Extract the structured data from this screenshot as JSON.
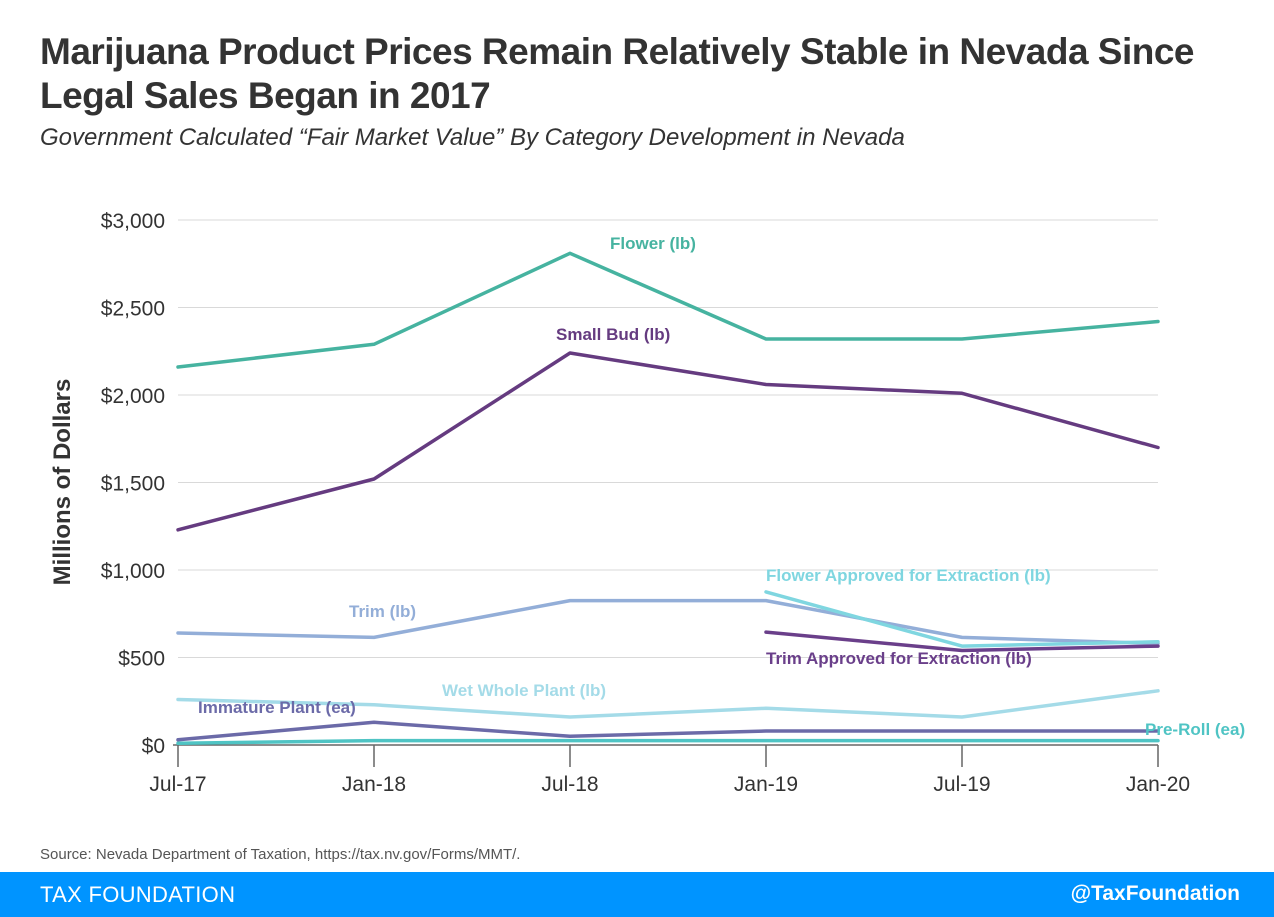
{
  "header": {
    "title": "Marijuana Product Prices Remain Relatively Stable in Nevada Since Legal Sales Began in 2017",
    "subtitle": "Government Calculated “Fair Market Value” By Category Development in Nevada"
  },
  "source": "Source: Nevada Department of Taxation, https://tax.nv.gov/Forms/MMT/.",
  "footer": {
    "brand": "TAX FOUNDATION",
    "handle": "@TaxFoundation",
    "color": "#0094ff"
  },
  "chart_data": {
    "type": "line",
    "title": "Marijuana Product Prices Remain Relatively Stable in Nevada Since Legal Sales Began in 2017",
    "subtitle": "Government Calculated “Fair Market Value” By Category Development in Nevada",
    "xlabel": "",
    "ylabel": "Millions of Dollars",
    "categories": [
      "Jul-17",
      "Jan-18",
      "Jul-18",
      "Jan-19",
      "Jul-19",
      "Jan-20"
    ],
    "ylim": [
      0,
      3000
    ],
    "yticks": [
      0,
      500,
      1000,
      1500,
      2000,
      2500,
      3000
    ],
    "ytick_labels": [
      "$0",
      "$500",
      "$1,000",
      "$1,500",
      "$2,000",
      "$2,500",
      "$3,000"
    ],
    "grid": true,
    "legend": "inline labels",
    "series": [
      {
        "name": "Flower (lb)",
        "color": "#46b3a0",
        "values": [
          2160,
          2290,
          2810,
          2320,
          2320,
          2420
        ]
      },
      {
        "name": "Small Bud (lb)",
        "color": "#653b80",
        "values": [
          1230,
          1520,
          2240,
          2060,
          2010,
          1700
        ]
      },
      {
        "name": "Trim (lb)",
        "color": "#93aed8",
        "values": [
          640,
          615,
          825,
          825,
          615,
          580
        ]
      },
      {
        "name": "Flower Approved for Extraction (lb)",
        "color": "#7fd6e0",
        "values": [
          null,
          null,
          null,
          875,
          565,
          590
        ]
      },
      {
        "name": "Trim Approved for Extraction (lb)",
        "color": "#6a3f8a",
        "values": [
          null,
          null,
          null,
          645,
          540,
          565
        ]
      },
      {
        "name": "Wet Whole Plant (lb)",
        "color": "#a4dbe8",
        "values": [
          260,
          230,
          160,
          210,
          160,
          310
        ]
      },
      {
        "name": "Immature Plant (ea)",
        "color": "#6b6aa8",
        "values": [
          30,
          130,
          50,
          80,
          80,
          80
        ]
      },
      {
        "name": "Pre-Roll (ea)",
        "color": "#4fc4c4",
        "values": [
          10,
          25,
          25,
          25,
          25,
          25
        ]
      }
    ]
  }
}
